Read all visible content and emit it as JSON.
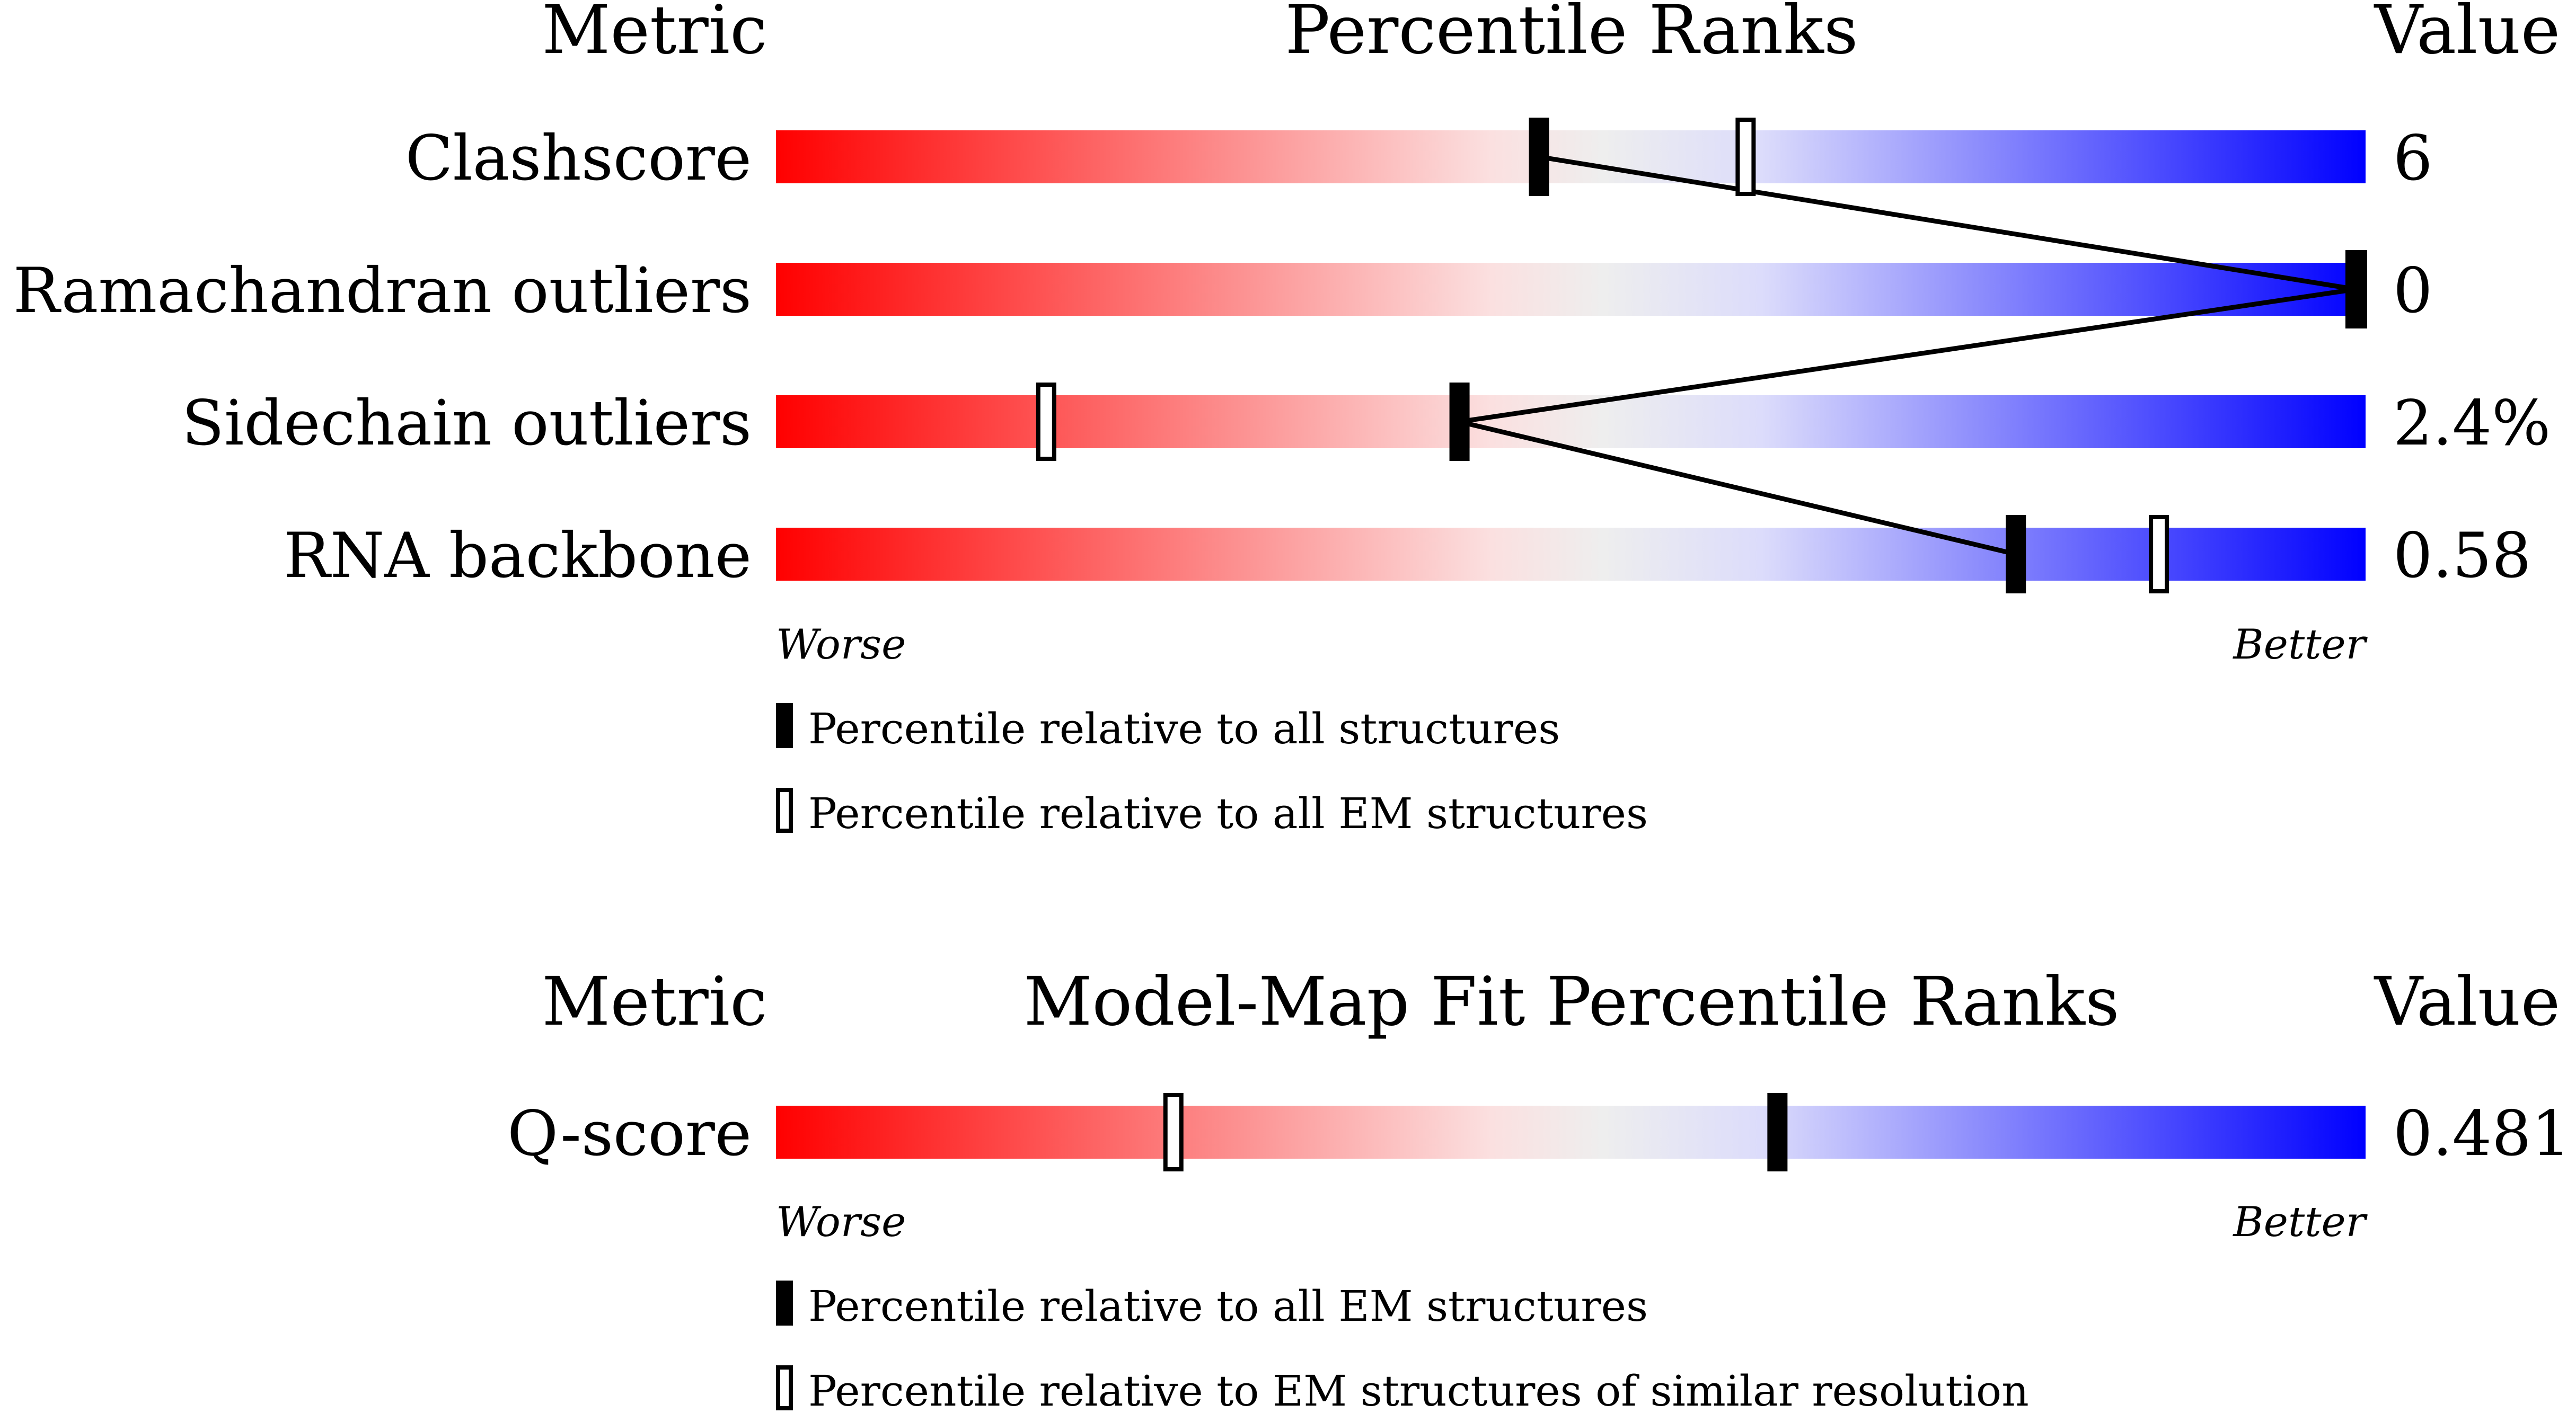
{
  "colors": {
    "worse": "#ff0000",
    "neutral": "#eeeeee",
    "better": "#0000ff",
    "marker": "#000000"
  },
  "panels": [
    {
      "headers": {
        "metric": "Metric",
        "title": "Percentile Ranks",
        "value": "Value"
      },
      "axis": {
        "worse": "Worse",
        "better": "Better"
      },
      "legend": [
        {
          "style": "filled",
          "text": "Percentile relative to all structures"
        },
        {
          "style": "open",
          "text": "Percentile relative to all EM structures"
        }
      ]
    },
    {
      "headers": {
        "metric": "Metric",
        "title": "Model-Map Fit Percentile Ranks",
        "value": "Value"
      },
      "axis": {
        "worse": "Worse",
        "better": "Better"
      },
      "legend": [
        {
          "style": "filled",
          "text": "Percentile relative to all EM structures"
        },
        {
          "style": "open",
          "text": "Percentile relative to EM structures of similar resolution"
        }
      ]
    }
  ],
  "chart_data": [
    {
      "type": "bar",
      "title": "Percentile Ranks",
      "x_range": [
        0,
        100
      ],
      "connect_filled_markers": true,
      "rows": [
        {
          "metric": "Clashscore",
          "value": "6",
          "percentile_all": 48,
          "percentile_secondary": 61
        },
        {
          "metric": "Ramachandran outliers",
          "value": "0",
          "percentile_all": 100,
          "percentile_secondary": 100
        },
        {
          "metric": "Sidechain outliers",
          "value": "2.4%",
          "percentile_all": 43,
          "percentile_secondary": 17
        },
        {
          "metric": "RNA backbone",
          "value": "0.58",
          "percentile_all": 78,
          "percentile_secondary": 87
        }
      ]
    },
    {
      "type": "bar",
      "title": "Model-Map Fit Percentile Ranks",
      "x_range": [
        0,
        100
      ],
      "connect_filled_markers": false,
      "rows": [
        {
          "metric": "Q-score",
          "value": "0.481",
          "percentile_all": 63,
          "percentile_secondary": 25
        }
      ]
    }
  ]
}
